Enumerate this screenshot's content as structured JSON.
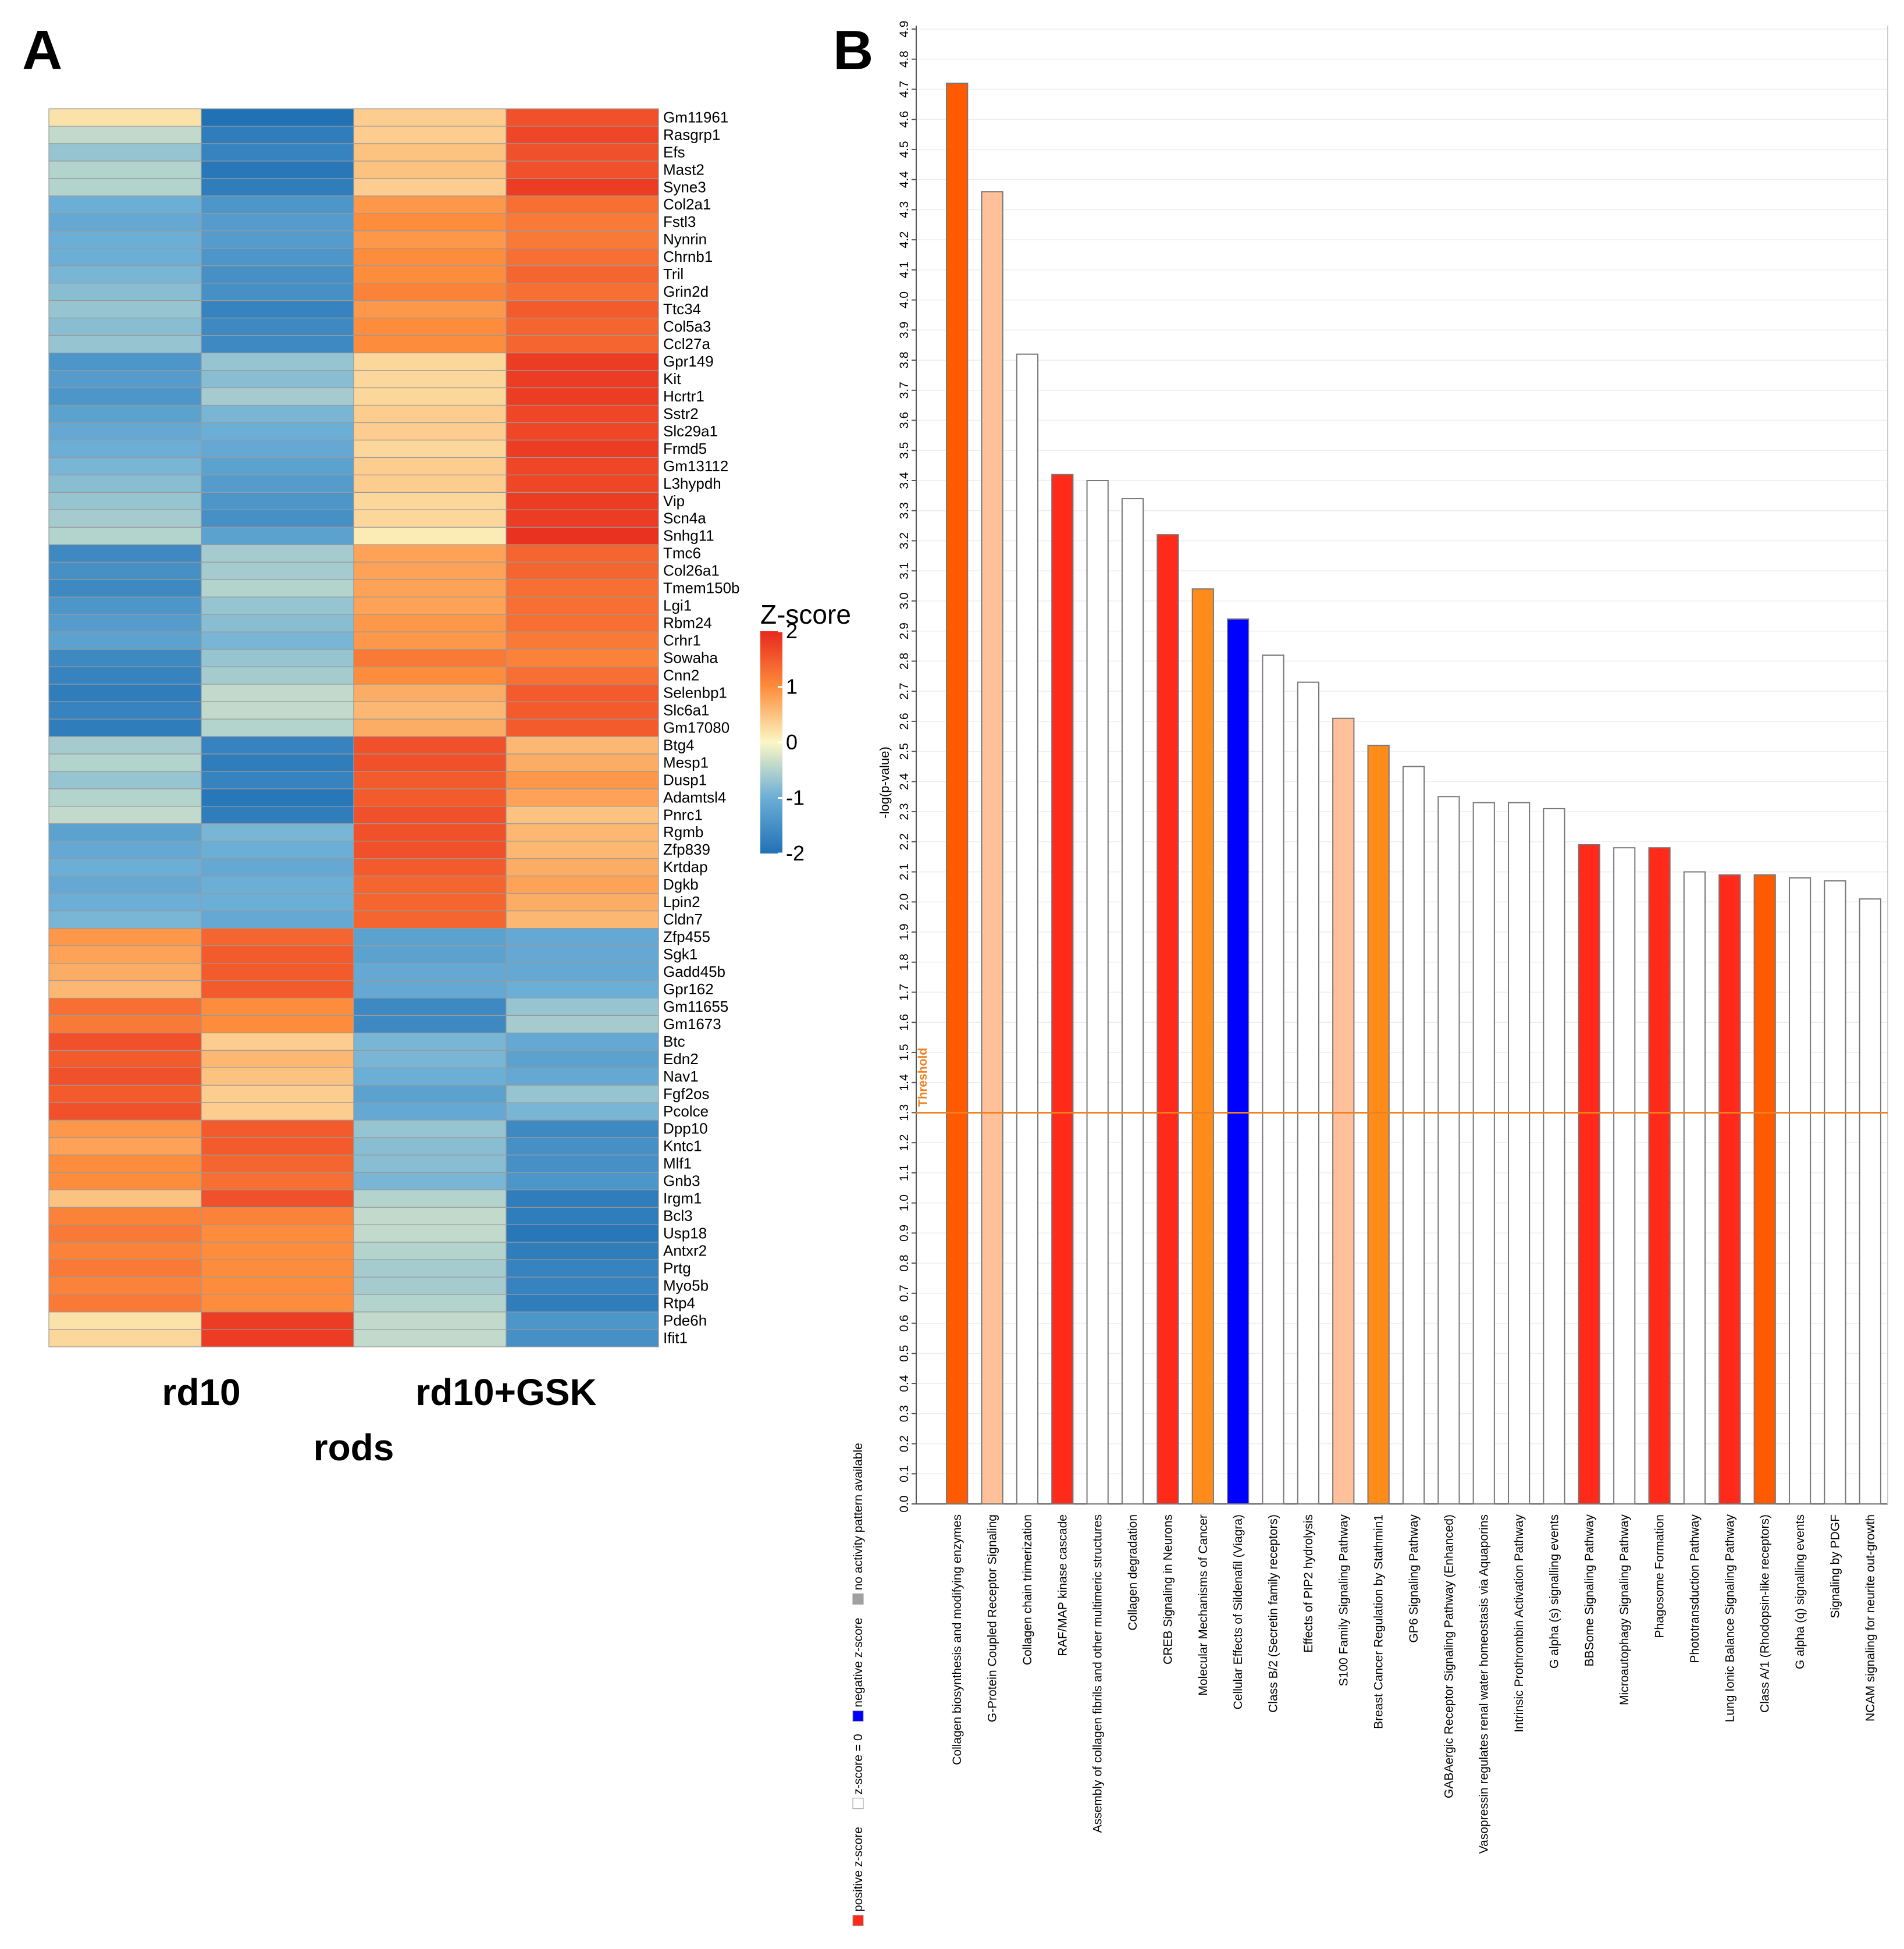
{
  "panels": {
    "a_label": "A",
    "b_label": "B"
  },
  "colors": {
    "neg2": "#2171b5",
    "neg1": "#6baed6",
    "zero": "#fbf7c4",
    "pos1": "#fd8d3c",
    "pos2": "#e8281e",
    "bar_positive": "#ff2a1a",
    "bar_negative": "#0000ff",
    "bar_orange": "#ff5a00",
    "bar_light_orange": "#ff8c1a",
    "bar_pale_orange": "#ffc09a",
    "bar_none": "#ffffff",
    "threshold": "#f08020",
    "no_activity": "#a0a0a0"
  },
  "chart_data": [
    {
      "type": "heatmap",
      "title": "",
      "x_groups": [
        "rd10",
        "rd10+GSK"
      ],
      "x_group_title": "rods",
      "columns": 4,
      "legend": {
        "title": "Z-score",
        "ticks": [
          "2",
          "1",
          "0",
          "-1",
          "-2"
        ],
        "range": [
          -2,
          2
        ]
      },
      "rows": [
        {
          "gene": "Gm11961",
          "z": [
            0.2,
            -2.0,
            0.4,
            1.6
          ]
        },
        {
          "gene": "Rasgrp1",
          "z": [
            -0.4,
            -1.8,
            0.4,
            1.7
          ]
        },
        {
          "gene": "Efs",
          "z": [
            -0.7,
            -1.7,
            0.5,
            1.6
          ]
        },
        {
          "gene": "Mast2",
          "z": [
            -0.5,
            -1.9,
            0.5,
            1.6
          ]
        },
        {
          "gene": "Syne3",
          "z": [
            -0.5,
            -1.8,
            0.4,
            1.8
          ]
        },
        {
          "gene": "Col2a1",
          "z": [
            -1.0,
            -1.4,
            0.9,
            1.3
          ]
        },
        {
          "gene": "Fstl3",
          "z": [
            -1.1,
            -1.3,
            1.0,
            1.2
          ]
        },
        {
          "gene": "Nynrin",
          "z": [
            -1.0,
            -1.3,
            0.9,
            1.2
          ]
        },
        {
          "gene": "Chrnb1",
          "z": [
            -1.0,
            -1.4,
            1.0,
            1.3
          ]
        },
        {
          "gene": "Tril",
          "z": [
            -0.9,
            -1.5,
            1.0,
            1.4
          ]
        },
        {
          "gene": "Grin2d",
          "z": [
            -0.8,
            -1.5,
            1.1,
            1.3
          ]
        },
        {
          "gene": "Ttc34",
          "z": [
            -0.7,
            -1.7,
            0.9,
            1.5
          ]
        },
        {
          "gene": "Col5a3",
          "z": [
            -0.8,
            -1.6,
            1.0,
            1.4
          ]
        },
        {
          "gene": "Ccl27a",
          "z": [
            -0.7,
            -1.6,
            1.0,
            1.4
          ]
        },
        {
          "gene": "Gpr149",
          "z": [
            -1.4,
            -0.7,
            0.3,
            1.8
          ]
        },
        {
          "gene": "Kit",
          "z": [
            -1.3,
            -0.8,
            0.3,
            1.8
          ]
        },
        {
          "gene": "Hcrtr1",
          "z": [
            -1.4,
            -0.6,
            0.3,
            1.8
          ]
        },
        {
          "gene": "Sstr2",
          "z": [
            -1.2,
            -0.9,
            0.4,
            1.7
          ]
        },
        {
          "gene": "Slc29a1",
          "z": [
            -1.1,
            -1.0,
            0.4,
            1.7
          ]
        },
        {
          "gene": "Frmd5",
          "z": [
            -1.0,
            -1.1,
            0.3,
            1.8
          ]
        },
        {
          "gene": "Gm13112",
          "z": [
            -0.9,
            -1.2,
            0.4,
            1.7
          ]
        },
        {
          "gene": "L3hypdh",
          "z": [
            -0.8,
            -1.3,
            0.4,
            1.7
          ]
        },
        {
          "gene": "Vip",
          "z": [
            -0.7,
            -1.4,
            0.3,
            1.8
          ]
        },
        {
          "gene": "Scn4a",
          "z": [
            -0.6,
            -1.5,
            0.3,
            1.8
          ]
        },
        {
          "gene": "Snhg11",
          "z": [
            -0.5,
            -1.2,
            0.1,
            1.9
          ]
        },
        {
          "gene": "Tmc6",
          "z": [
            -1.6,
            -0.6,
            0.8,
            1.4
          ]
        },
        {
          "gene": "Col26a1",
          "z": [
            -1.5,
            -0.6,
            0.8,
            1.4
          ]
        },
        {
          "gene": "Tmem150b",
          "z": [
            -1.6,
            -0.5,
            0.8,
            1.3
          ]
        },
        {
          "gene": "Lgi1",
          "z": [
            -1.4,
            -0.7,
            0.8,
            1.3
          ]
        },
        {
          "gene": "Rbm24",
          "z": [
            -1.3,
            -0.8,
            0.9,
            1.3
          ]
        },
        {
          "gene": "Crhr1",
          "z": [
            -1.2,
            -0.9,
            0.9,
            1.2
          ]
        },
        {
          "gene": "Sowaha",
          "z": [
            -1.6,
            -0.7,
            1.2,
            1.1
          ]
        },
        {
          "gene": "Cnn2",
          "z": [
            -1.7,
            -0.6,
            1.0,
            1.3
          ]
        },
        {
          "gene": "Selenbp1",
          "z": [
            -1.8,
            -0.4,
            0.7,
            1.5
          ]
        },
        {
          "gene": "Slc6a1",
          "z": [
            -1.7,
            -0.4,
            0.6,
            1.5
          ]
        },
        {
          "gene": "Gm17080",
          "z": [
            -1.8,
            -0.5,
            0.7,
            1.5
          ]
        },
        {
          "gene": "Btg4",
          "z": [
            -0.6,
            -1.7,
            1.6,
            0.6
          ]
        },
        {
          "gene": "Mesp1",
          "z": [
            -0.5,
            -1.8,
            1.6,
            0.7
          ]
        },
        {
          "gene": "Dusp1",
          "z": [
            -0.7,
            -1.7,
            1.5,
            0.9
          ]
        },
        {
          "gene": "Adamtsl4",
          "z": [
            -0.5,
            -1.9,
            1.5,
            0.8
          ]
        },
        {
          "gene": "Pnrc1",
          "z": [
            -0.4,
            -1.8,
            1.6,
            0.5
          ]
        },
        {
          "gene": "Rgmb",
          "z": [
            -1.2,
            -0.9,
            1.6,
            0.6
          ]
        },
        {
          "gene": "Zfp839",
          "z": [
            -1.1,
            -1.0,
            1.6,
            0.6
          ]
        },
        {
          "gene": "Krtdap",
          "z": [
            -1.0,
            -1.1,
            1.5,
            0.7
          ]
        },
        {
          "gene": "Dgkb",
          "z": [
            -1.1,
            -1.0,
            1.4,
            0.8
          ]
        },
        {
          "gene": "Lpin2",
          "z": [
            -1.0,
            -1.0,
            1.4,
            0.7
          ]
        },
        {
          "gene": "Cldn7",
          "z": [
            -0.9,
            -1.1,
            1.4,
            0.6
          ]
        },
        {
          "gene": "Zfp455",
          "z": [
            0.9,
            1.4,
            -1.2,
            -1.1
          ]
        },
        {
          "gene": "Sgk1",
          "z": [
            0.8,
            1.5,
            -1.2,
            -1.1
          ]
        },
        {
          "gene": "Gadd45b",
          "z": [
            0.7,
            1.5,
            -1.1,
            -1.1
          ]
        },
        {
          "gene": "Gpr162",
          "z": [
            0.6,
            1.5,
            -1.1,
            -1.0
          ]
        },
        {
          "gene": "Gm11655",
          "z": [
            1.3,
            1.0,
            -1.6,
            -0.7
          ]
        },
        {
          "gene": "Gm1673",
          "z": [
            1.2,
            1.0,
            -1.6,
            -0.6
          ]
        },
        {
          "gene": "Btc",
          "z": [
            1.6,
            0.4,
            -0.9,
            -1.1
          ]
        },
        {
          "gene": "Edn2",
          "z": [
            1.5,
            0.6,
            -0.9,
            -1.2
          ]
        },
        {
          "gene": "Nav1",
          "z": [
            1.6,
            0.5,
            -1.0,
            -1.1
          ]
        },
        {
          "gene": "Fgf2os",
          "z": [
            1.5,
            0.4,
            -1.2,
            -0.7
          ]
        },
        {
          "gene": "Pcolce",
          "z": [
            1.6,
            0.4,
            -1.1,
            -0.9
          ]
        },
        {
          "gene": "Dpp10",
          "z": [
            0.9,
            1.5,
            -0.7,
            -1.6
          ]
        },
        {
          "gene": "Kntc1",
          "z": [
            0.8,
            1.5,
            -0.8,
            -1.5
          ]
        },
        {
          "gene": "Mlf1",
          "z": [
            1.0,
            1.4,
            -0.8,
            -1.5
          ]
        },
        {
          "gene": "Gnb3",
          "z": [
            1.0,
            1.3,
            -0.9,
            -1.4
          ]
        },
        {
          "gene": "Irgm1",
          "z": [
            0.5,
            1.6,
            -0.5,
            -1.8
          ]
        },
        {
          "gene": "Bcl3",
          "z": [
            1.1,
            1.1,
            -0.4,
            -1.8
          ]
        },
        {
          "gene": "Usp18",
          "z": [
            1.2,
            1.0,
            -0.4,
            -1.9
          ]
        },
        {
          "gene": "Antxr2",
          "z": [
            1.1,
            1.0,
            -0.5,
            -1.8
          ]
        },
        {
          "gene": "Prtg",
          "z": [
            1.2,
            1.0,
            -0.6,
            -1.7
          ]
        },
        {
          "gene": "Myo5b",
          "z": [
            1.1,
            1.0,
            -0.6,
            -1.7
          ]
        },
        {
          "gene": "Rtp4",
          "z": [
            1.2,
            1.0,
            -0.5,
            -1.8
          ]
        },
        {
          "gene": "Pde6h",
          "z": [
            0.2,
            1.8,
            -0.4,
            -1.4
          ]
        },
        {
          "gene": "Ifit1",
          "z": [
            0.3,
            1.8,
            -0.4,
            -1.5
          ]
        }
      ]
    },
    {
      "type": "bar",
      "title": "",
      "xlabel": "",
      "ylabel": "-log(p-value)",
      "ylim": [
        0,
        4.9
      ],
      "yticks": [
        "0.0",
        "0.1",
        "0.2",
        "0.3",
        "0.4",
        "0.5",
        "0.6",
        "0.7",
        "0.8",
        "0.9",
        "1.0",
        "1.1",
        "1.2",
        "1.3",
        "1.4",
        "1.5",
        "1.6",
        "1.7",
        "1.8",
        "1.9",
        "2.0",
        "2.1",
        "2.2",
        "2.3",
        "2.4",
        "2.5",
        "2.6",
        "2.7",
        "2.8",
        "2.9",
        "3.0",
        "3.1",
        "3.2",
        "3.3",
        "3.4",
        "3.5",
        "3.6",
        "3.7",
        "3.8",
        "3.9",
        "4.0",
        "4.1",
        "4.2",
        "4.3",
        "4.4",
        "4.5",
        "4.6",
        "4.7",
        "4.8",
        "4.9"
      ],
      "threshold": {
        "value": 1.3,
        "label": "Threshold"
      },
      "legend": [
        {
          "label": "positive z-score",
          "color": "#ff2a1a"
        },
        {
          "label": "z-score = 0",
          "color": "#ffffff"
        },
        {
          "label": "negative z-score",
          "color": "#0000ff"
        },
        {
          "label": "no activity pattern available",
          "color": "#a0a0a0"
        }
      ],
      "categories": [
        "Collagen biosynthesis and modifying enzymes",
        "G-Protein Coupled Receptor Signaling",
        "Collagen chain trimerization",
        "RAF/MAP kinase cascade",
        "Assembly of collagen fibrils and other multimeric structures",
        "Collagen degradation",
        "CREB Signaling in Neurons",
        "Molecular Mechanisms of Cancer",
        "Cellular Effects of Sildenafil (Viagra)",
        "Class B/2 (Secretin family receptors)",
        "Effects of PIP2 hydrolysis",
        "S100 Family Signaling Pathway",
        "Breast Cancer Regulation by Stathmin1",
        "GP6 Signaling Pathway",
        "GABAergic Receptor Signaling Pathway (Enhanced)",
        "Vasopressin regulates renal water homeostasis via Aquaporins",
        "Intrinsic Prothrombin Activation Pathway",
        "G alpha (s) signalling events",
        "BBSome Signaling Pathway",
        "Microautophagy Signaling Pathway",
        "Phagosome Formation",
        "Phototransduction Pathway",
        "Lung Ionic Balance Signaling Pathway",
        "Class A/1 (Rhodopsin-like receptors)",
        "G alpha (q) signalling events",
        "Signaling by PDGF",
        "NCAM signaling for neurite out-growth"
      ],
      "values": [
        4.72,
        4.36,
        3.82,
        3.42,
        3.4,
        3.34,
        3.22,
        3.04,
        2.94,
        2.82,
        2.73,
        2.61,
        2.52,
        2.45,
        2.35,
        2.33,
        2.33,
        2.31,
        2.19,
        2.18,
        2.18,
        2.1,
        2.09,
        2.09,
        2.08,
        2.07,
        2.01
      ],
      "bar_colors": [
        "bar_orange",
        "bar_pale_orange",
        "bar_none",
        "bar_positive",
        "bar_none",
        "bar_none",
        "bar_positive",
        "bar_light_orange",
        "bar_negative",
        "bar_none",
        "bar_none",
        "bar_pale_orange",
        "bar_light_orange",
        "bar_none",
        "bar_none",
        "bar_none",
        "bar_none",
        "bar_none",
        "bar_positive",
        "bar_none",
        "bar_positive",
        "bar_none",
        "bar_positive",
        "bar_orange",
        "bar_none",
        "bar_none",
        "bar_none"
      ]
    }
  ]
}
